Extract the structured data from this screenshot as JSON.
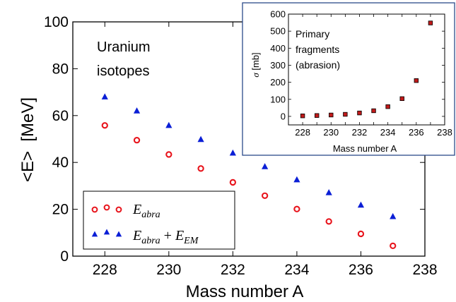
{
  "chart_data": [
    {
      "type": "scatter",
      "title": "",
      "xlabel": "Mass number A",
      "ylabel": "<E>  [MeV]",
      "xlim": [
        227,
        238
      ],
      "ylim": [
        0,
        100
      ],
      "xticks": [
        "228",
        "230",
        "232",
        "234",
        "236",
        "238"
      ],
      "yticks": [
        "0",
        "20",
        "40",
        "60",
        "80",
        "100"
      ],
      "annotation": [
        "Uranium",
        "isotopes"
      ],
      "legend_position": "bottom-left",
      "x": [
        228,
        229,
        230,
        231,
        232,
        233,
        234,
        235,
        236,
        237
      ],
      "series": [
        {
          "legend_parts": [
            "E",
            "abra"
          ],
          "marker": "open-circle",
          "color": "#e8141c",
          "values": [
            55.8,
            49.5,
            43.4,
            37.4,
            31.5,
            25.8,
            20.1,
            14.8,
            9.5,
            4.4
          ]
        },
        {
          "legend_parts": [
            "E",
            "abra",
            " + ",
            "E",
            "EM"
          ],
          "marker": "filled-triangle",
          "color": "#0b1fd6",
          "values": [
            68.0,
            62.0,
            55.8,
            49.8,
            44.0,
            38.2,
            32.6,
            27.1,
            21.8,
            16.9
          ]
        }
      ]
    },
    {
      "type": "scatter",
      "title": "",
      "xlabel": "Mass number A",
      "ylabel_symbol": "σ",
      "ylabel_unit": "[mb]",
      "xlim": [
        227,
        238
      ],
      "ylim": [
        -50,
        600
      ],
      "xticks": [
        "228",
        "229",
        "230",
        "231",
        "232",
        "233",
        "234",
        "235",
        "236",
        "237",
        "238"
      ],
      "yticks": [
        "0",
        "100",
        "200",
        "300",
        "400",
        "500",
        "600"
      ],
      "annotation": [
        "Primary",
        "fragments",
        "(abrasion)"
      ],
      "marker": "filled-square",
      "color": "#c11a1a",
      "x": [
        228,
        229,
        230,
        231,
        232,
        233,
        234,
        235,
        236,
        237
      ],
      "values": [
        3,
        5,
        8,
        12,
        20,
        33,
        57,
        104,
        210,
        548
      ]
    }
  ]
}
